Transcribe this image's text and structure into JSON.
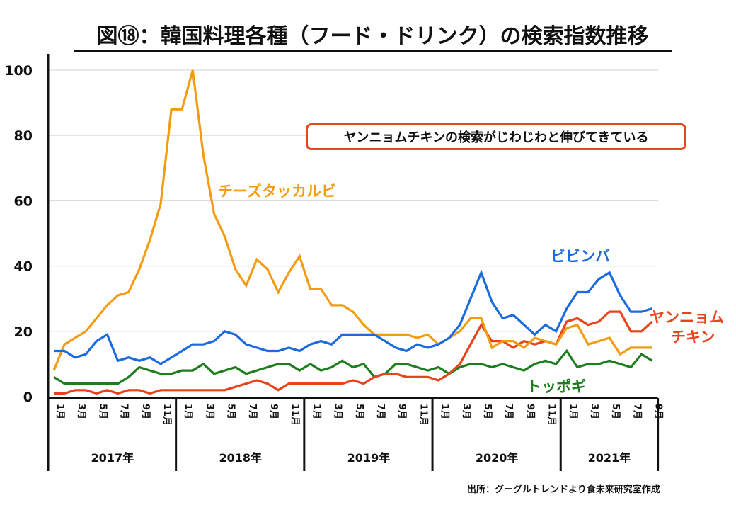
{
  "title": "図⑱：韓国料理各種（フード・ドリンク）の検索指数推移",
  "annotation": "ヤンニョムチキンの検索がじわじわと伸びてきている",
  "source": "出所：グーグルトレンドより食未来研究室作成",
  "series_labels": {
    "cheese": "チーズタッカルビ",
    "bibimbap": "ビビンバ",
    "yangnyeom_line1": "ヤンニョム",
    "yangnyeom_line2": "チキン",
    "tteokbokki": "トッポギ"
  },
  "chart_data": {
    "type": "line",
    "title": "図⑱：韓国料理各種（フード・ドリンク）の検索指数推移",
    "xlabel": "",
    "ylabel": "",
    "ylim": [
      0,
      100
    ],
    "yticks": [
      0,
      20,
      40,
      60,
      80,
      100
    ],
    "grid": true,
    "start": "2017-01",
    "end": "2021-09",
    "years": [
      "2017年",
      "2018年",
      "2019年",
      "2020年",
      "2021年"
    ],
    "month_tick_labels": [
      "1月",
      "3月",
      "5月",
      "7月",
      "9月",
      "11月"
    ],
    "x": [
      "2017-01",
      "2017-02",
      "2017-03",
      "2017-04",
      "2017-05",
      "2017-06",
      "2017-07",
      "2017-08",
      "2017-09",
      "2017-10",
      "2017-11",
      "2017-12",
      "2018-01",
      "2018-02",
      "2018-03",
      "2018-04",
      "2018-05",
      "2018-06",
      "2018-07",
      "2018-08",
      "2018-09",
      "2018-10",
      "2018-11",
      "2018-12",
      "2019-01",
      "2019-02",
      "2019-03",
      "2019-04",
      "2019-05",
      "2019-06",
      "2019-07",
      "2019-08",
      "2019-09",
      "2019-10",
      "2019-11",
      "2019-12",
      "2020-01",
      "2020-02",
      "2020-03",
      "2020-04",
      "2020-05",
      "2020-06",
      "2020-07",
      "2020-08",
      "2020-09",
      "2020-10",
      "2020-11",
      "2020-12",
      "2021-01",
      "2021-02",
      "2021-03",
      "2021-04",
      "2021-05",
      "2021-06",
      "2021-07",
      "2021-08",
      "2021-09"
    ],
    "series": [
      {
        "name": "チーズタッカルビ",
        "color": "#f39c12",
        "values": [
          8,
          16,
          18,
          20,
          24,
          28,
          31,
          32,
          39,
          48,
          59,
          88,
          88,
          100,
          74,
          56,
          49,
          39,
          34,
          42,
          39,
          32,
          38,
          43,
          33,
          33,
          28,
          28,
          26,
          22,
          19,
          19,
          19,
          19,
          18,
          19,
          16,
          18,
          20,
          24,
          24,
          15,
          17,
          17,
          15,
          18,
          17,
          16,
          21,
          22,
          16,
          17,
          18,
          13,
          15,
          15,
          15
        ]
      },
      {
        "name": "ビビンバ",
        "color": "#1a6ae0",
        "values": [
          14,
          14,
          12,
          13,
          17,
          19,
          11,
          12,
          11,
          12,
          10,
          12,
          14,
          16,
          16,
          17,
          20,
          19,
          16,
          15,
          14,
          14,
          15,
          14,
          16,
          17,
          16,
          19,
          19,
          19,
          19,
          17,
          15,
          14,
          16,
          15,
          16,
          18,
          22,
          30,
          38,
          29,
          24,
          25,
          22,
          19,
          22,
          20,
          27,
          32,
          32,
          36,
          38,
          31,
          26,
          26,
          27
        ]
      },
      {
        "name": "ヤンニョムチキン",
        "color": "#e8431a",
        "values": [
          1,
          1,
          2,
          2,
          1,
          2,
          1,
          2,
          2,
          1,
          2,
          2,
          2,
          2,
          2,
          2,
          2,
          3,
          4,
          5,
          4,
          2,
          4,
          4,
          4,
          4,
          4,
          4,
          5,
          4,
          6,
          7,
          7,
          6,
          6,
          6,
          5,
          7,
          10,
          16,
          22,
          17,
          17,
          15,
          17,
          16,
          17,
          16,
          23,
          24,
          22,
          23,
          26,
          26,
          20,
          20,
          23
        ]
      },
      {
        "name": "トッポギ",
        "color": "#1e7d1e",
        "values": [
          6,
          4,
          4,
          4,
          4,
          4,
          4,
          6,
          9,
          8,
          7,
          7,
          8,
          8,
          10,
          7,
          8,
          9,
          7,
          8,
          9,
          10,
          10,
          8,
          10,
          8,
          9,
          11,
          9,
          10,
          6,
          7,
          10,
          10,
          9,
          8,
          9,
          7,
          9,
          10,
          10,
          9,
          10,
          9,
          8,
          10,
          11,
          10,
          14,
          9,
          10,
          10,
          11,
          10,
          9,
          13,
          11
        ]
      }
    ]
  }
}
